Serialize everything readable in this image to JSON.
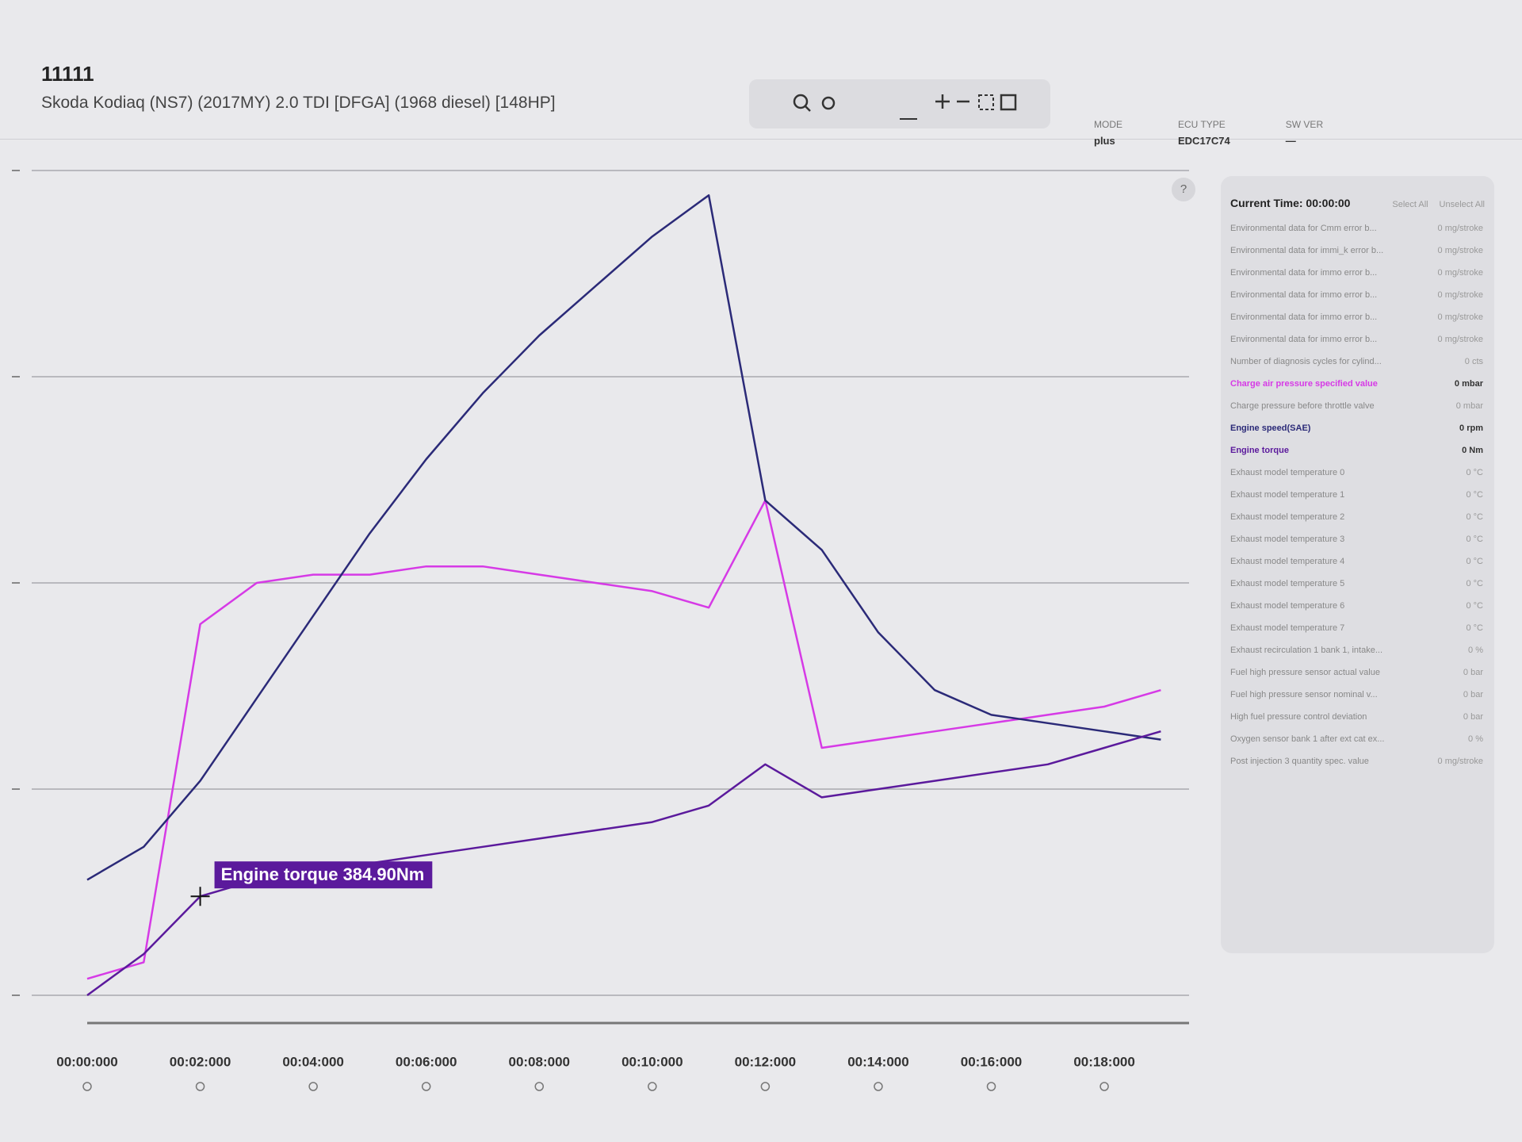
{
  "header": {
    "title": "11111",
    "subtitle": "Skoda Kodiaq (NS7) (2017MY) 2.0 TDI [DFGA] (1968 diesel) [148HP]",
    "fields": [
      {
        "label": "MODE",
        "value": "plus"
      },
      {
        "label": "ECU TYPE",
        "value": "EDC17C74"
      },
      {
        "label": "SW VER",
        "value": "—"
      }
    ]
  },
  "panel": {
    "current_time": "Current Time: 00:00:00",
    "select_all": "Select All",
    "unselect_all": "Unselect All",
    "items_a": [
      {
        "name": "Environmental data for Cmm error b...",
        "value": "0 mg/stroke"
      },
      {
        "name": "Environmental data for immi_k error b...",
        "value": "0 mg/stroke"
      },
      {
        "name": "Environmental data for immo error b...",
        "value": "0 mg/stroke"
      },
      {
        "name": "Environmental data for immo error b...",
        "value": "0 mg/stroke"
      },
      {
        "name": "Environmental data for immo error b...",
        "value": "0 mg/stroke"
      },
      {
        "name": "Environmental data for immo error b...",
        "value": "0 mg/stroke"
      },
      {
        "name": "Number of diagnosis cycles for cylind...",
        "value": "0 cts"
      }
    ],
    "items_b": [
      {
        "name": "Charge pressure before throttle valve",
        "value": "0 mbar"
      }
    ],
    "items_c": [
      {
        "name": "Exhaust model temperature 0",
        "value": "0 °C"
      },
      {
        "name": "Exhaust model temperature 1",
        "value": "0 °C"
      },
      {
        "name": "Exhaust model temperature 2",
        "value": "0 °C"
      },
      {
        "name": "Exhaust model temperature 3",
        "value": "0 °C"
      },
      {
        "name": "Exhaust model temperature 4",
        "value": "0 °C"
      },
      {
        "name": "Exhaust model temperature 5",
        "value": "0 °C"
      },
      {
        "name": "Exhaust model temperature 6",
        "value": "0 °C"
      },
      {
        "name": "Exhaust model temperature 7",
        "value": "0 °C"
      },
      {
        "name": "Exhaust recirculation 1 bank 1, intake...",
        "value": "0 %"
      },
      {
        "name": "Fuel high pressure sensor actual value",
        "value": "0 bar"
      },
      {
        "name": "Fuel high pressure sensor nominal v...",
        "value": "0 bar"
      },
      {
        "name": "High fuel pressure control deviation",
        "value": "0 bar"
      },
      {
        "name": "Oxygen sensor bank 1 after ext cat ex...",
        "value": "0 %"
      },
      {
        "name": "Post injection 3 quantity spec. value",
        "value": "0 mg/stroke"
      }
    ]
  },
  "chart_data": {
    "type": "line",
    "x": [
      0,
      1,
      2,
      3,
      4,
      5,
      6,
      7,
      8,
      9,
      10,
      11,
      12,
      13,
      14,
      15,
      16,
      17,
      18,
      19
    ],
    "xlim": [
      0,
      19.5
    ],
    "xticks": [
      {
        "value": 0,
        "label": "00:00:000"
      },
      {
        "value": 2,
        "label": "00:02:000"
      },
      {
        "value": 4,
        "label": "00:04:000"
      },
      {
        "value": 6,
        "label": "00:06:000"
      },
      {
        "value": 8,
        "label": "00:08:000"
      },
      {
        "value": 10,
        "label": "00:10:000"
      },
      {
        "value": 12,
        "label": "00:12:000"
      },
      {
        "value": 14,
        "label": "00:14:000"
      },
      {
        "value": 16,
        "label": "00:16:000"
      },
      {
        "value": 18,
        "label": "00:18:000"
      }
    ],
    "ylim": [
      0,
      100
    ],
    "series": [
      {
        "name": "Charge air pressure specified value",
        "color": "#d63ae6",
        "reading": "0 mbar",
        "values": [
          2,
          4,
          45,
          50,
          51,
          51,
          52,
          52,
          51,
          50,
          49,
          47,
          60,
          30,
          31,
          32,
          33,
          34,
          35,
          37
        ]
      },
      {
        "name": "Engine speed(SAE)",
        "color": "#2b2a78",
        "reading": "0 rpm",
        "values": [
          14,
          18,
          26,
          36,
          46,
          56,
          65,
          73,
          80,
          86,
          92,
          97,
          60,
          54,
          44,
          37,
          34,
          33,
          32,
          31
        ]
      },
      {
        "name": "Engine torque",
        "color": "#5b1a9c",
        "reading": "0 Nm",
        "values": [
          0,
          5,
          12,
          14,
          15,
          16,
          17,
          18,
          19,
          20,
          21,
          23,
          28,
          24,
          25,
          26,
          27,
          28,
          30,
          32
        ]
      }
    ],
    "tooltip": "Engine torque 384.90Nm"
  }
}
